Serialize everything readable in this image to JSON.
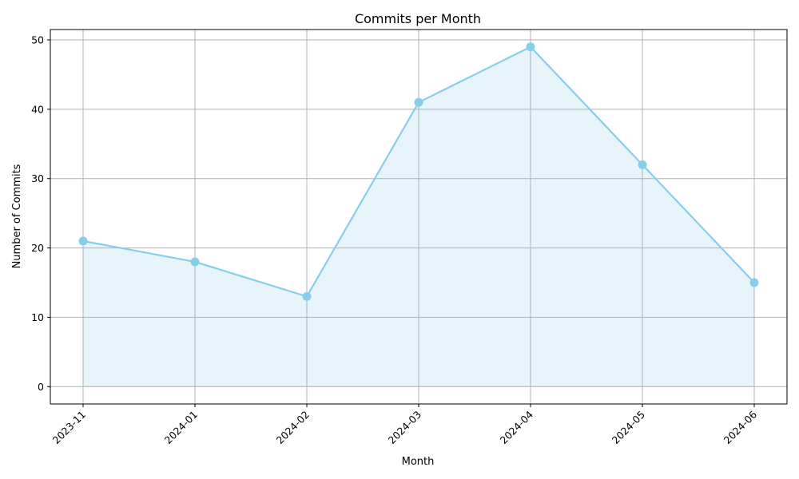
{
  "chart_data": {
    "type": "area",
    "title": "Commits per Month",
    "xlabel": "Month",
    "ylabel": "Number of Commits",
    "categories": [
      "2023-11",
      "2024-01",
      "2024-02",
      "2024-03",
      "2024-04",
      "2024-05",
      "2024-06"
    ],
    "series": [
      {
        "values": [
          21,
          18,
          13,
          41,
          49,
          32,
          15
        ]
      }
    ],
    "ylim": [
      -2.5,
      51.5
    ],
    "yticks": [
      0,
      10,
      20,
      30,
      40,
      50
    ],
    "grid": true,
    "colors": {
      "line": "#87ceeb",
      "fill": "#87ceeb",
      "grid": "#b0b0b0",
      "axis": "#000000"
    }
  }
}
